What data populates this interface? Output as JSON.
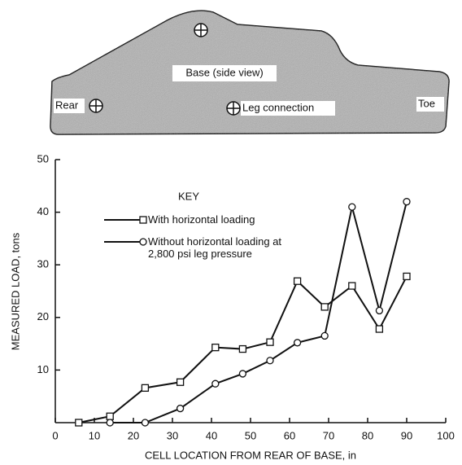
{
  "diagram": {
    "labels": [
      "Base (side view)",
      "Rear",
      "Leg connection",
      "Toe"
    ]
  },
  "chart_data": {
    "type": "line",
    "xlabel": "CELL LOCATION FROM REAR OF BASE, in",
    "ylabel": "MEASURED LOAD, tons",
    "legend_title": "KEY",
    "xlim": [
      0,
      100
    ],
    "xticks": [
      0,
      10,
      20,
      30,
      40,
      50,
      60,
      70,
      80,
      90,
      100
    ],
    "ylim": [
      0,
      50
    ],
    "yticks": [
      10,
      20,
      30,
      40,
      50
    ],
    "series": [
      {
        "name": "With horizontal loading",
        "marker": "square",
        "color": "#111111",
        "x": [
          6,
          14,
          23,
          32,
          41,
          48,
          55,
          62,
          69,
          76,
          83,
          90
        ],
        "values": [
          0,
          1.2,
          6.6,
          7.7,
          14.3,
          14,
          15.3,
          26.9,
          22,
          26,
          17.8,
          27.8
        ]
      },
      {
        "name": "Without horizontal loading at 2,800 psi leg pressure",
        "marker": "circle",
        "color": "#111111",
        "x": [
          14,
          23,
          32,
          41,
          48,
          55,
          62,
          69,
          76,
          83,
          90
        ],
        "values": [
          0,
          0,
          2.7,
          7.4,
          9.3,
          11.8,
          15.2,
          16.5,
          41,
          21.3,
          42
        ]
      }
    ]
  }
}
